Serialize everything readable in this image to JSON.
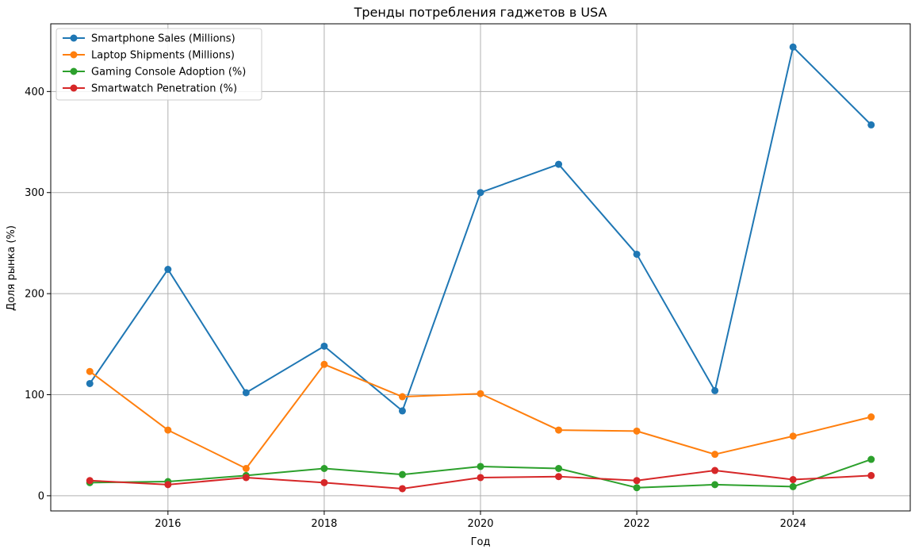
{
  "chart_data": {
    "type": "line",
    "title": "Тренды потребления гаджетов в USA",
    "xlabel": "Год",
    "ylabel": "Доля рынка (%)",
    "x": [
      2015,
      2016,
      2017,
      2018,
      2019,
      2020,
      2021,
      2022,
      2023,
      2024,
      2025
    ],
    "x_ticks": [
      2016,
      2018,
      2020,
      2022,
      2024
    ],
    "y_ticks": [
      0,
      100,
      200,
      300,
      400
    ],
    "xlim": [
      2014.5,
      2025.5
    ],
    "ylim": [
      -15,
      467
    ],
    "grid": true,
    "legend_position": "top-left",
    "series": [
      {
        "name": "Smartphone Sales (Millions)",
        "color": "#1f77b4",
        "values": [
          111,
          224,
          102,
          148,
          84,
          300,
          328,
          239,
          104,
          444,
          367
        ]
      },
      {
        "name": "Laptop Shipments (Millions)",
        "color": "#ff7f0e",
        "values": [
          123,
          65,
          27,
          130,
          98,
          101,
          65,
          64,
          41,
          59,
          78
        ]
      },
      {
        "name": "Gaming Console Adoption (%)",
        "color": "#2ca02c",
        "values": [
          13,
          14,
          20,
          27,
          21,
          29,
          27,
          8,
          11,
          9,
          36
        ]
      },
      {
        "name": "Smartwatch Penetration (%)",
        "color": "#d62728",
        "values": [
          15,
          11,
          18,
          13,
          7,
          18,
          19,
          15,
          25,
          16,
          20
        ]
      }
    ]
  }
}
